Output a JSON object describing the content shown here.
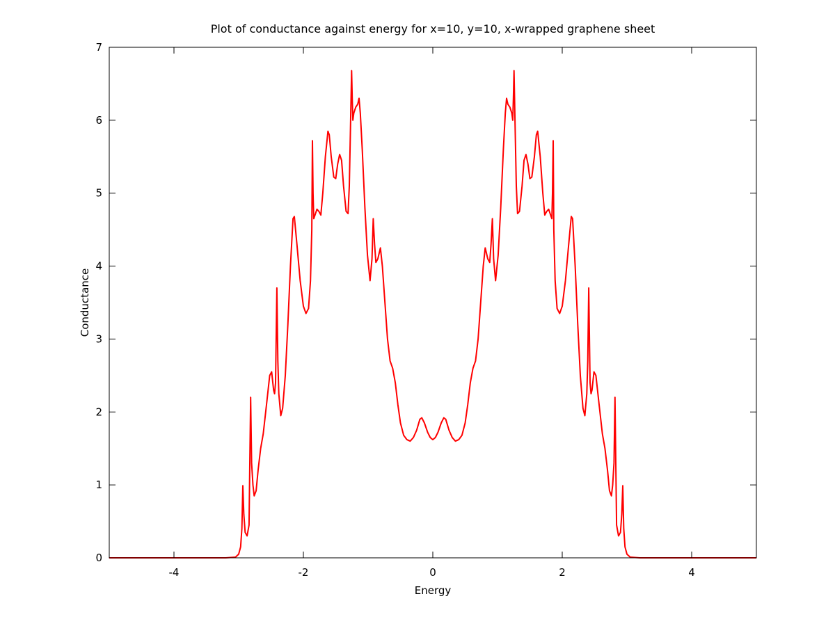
{
  "chart_data": {
    "type": "line",
    "title": "Plot of conductance against energy for x=10, y=10, x-wrapped graphene sheet",
    "xlabel": "Energy",
    "ylabel": "Conductance",
    "xlim": [
      -5,
      5
    ],
    "ylim": [
      0,
      7
    ],
    "xticks": [
      -4,
      -2,
      0,
      2,
      4
    ],
    "yticks": [
      0,
      1,
      2,
      3,
      4,
      5,
      6,
      7
    ],
    "grid": false,
    "legend": "none",
    "series": [
      {
        "color": "#ff0000",
        "points": [
          [
            -5.0,
            0.0
          ],
          [
            -3.2,
            0.0
          ],
          [
            -3.05,
            0.01
          ],
          [
            -3.0,
            0.05
          ],
          [
            -2.97,
            0.15
          ],
          [
            -2.95,
            0.4
          ],
          [
            -2.935,
            0.99
          ],
          [
            -2.92,
            0.6
          ],
          [
            -2.9,
            0.35
          ],
          [
            -2.87,
            0.3
          ],
          [
            -2.84,
            0.45
          ],
          [
            -2.815,
            2.2
          ],
          [
            -2.8,
            1.3
          ],
          [
            -2.78,
            1.0
          ],
          [
            -2.76,
            0.85
          ],
          [
            -2.73,
            0.92
          ],
          [
            -2.7,
            1.2
          ],
          [
            -2.66,
            1.5
          ],
          [
            -2.62,
            1.7
          ],
          [
            -2.57,
            2.1
          ],
          [
            -2.52,
            2.5
          ],
          [
            -2.49,
            2.55
          ],
          [
            -2.46,
            2.3
          ],
          [
            -2.445,
            2.25
          ],
          [
            -2.43,
            2.4
          ],
          [
            -2.41,
            3.7
          ],
          [
            -2.395,
            2.7
          ],
          [
            -2.38,
            2.25
          ],
          [
            -2.35,
            1.95
          ],
          [
            -2.32,
            2.05
          ],
          [
            -2.28,
            2.5
          ],
          [
            -2.24,
            3.2
          ],
          [
            -2.2,
            4.0
          ],
          [
            -2.16,
            4.65
          ],
          [
            -2.14,
            4.68
          ],
          [
            -2.1,
            4.3
          ],
          [
            -2.05,
            3.8
          ],
          [
            -2.0,
            3.45
          ],
          [
            -1.96,
            3.35
          ],
          [
            -1.92,
            3.42
          ],
          [
            -1.89,
            3.8
          ],
          [
            -1.87,
            4.5
          ],
          [
            -1.86,
            5.72
          ],
          [
            -1.85,
            5.0
          ],
          [
            -1.84,
            4.65
          ],
          [
            -1.82,
            4.7
          ],
          [
            -1.79,
            4.78
          ],
          [
            -1.76,
            4.75
          ],
          [
            -1.73,
            4.7
          ],
          [
            -1.7,
            5.0
          ],
          [
            -1.66,
            5.5
          ],
          [
            -1.62,
            5.85
          ],
          [
            -1.6,
            5.8
          ],
          [
            -1.57,
            5.5
          ],
          [
            -1.53,
            5.22
          ],
          [
            -1.5,
            5.2
          ],
          [
            -1.47,
            5.4
          ],
          [
            -1.44,
            5.53
          ],
          [
            -1.41,
            5.45
          ],
          [
            -1.38,
            5.1
          ],
          [
            -1.34,
            4.75
          ],
          [
            -1.31,
            4.72
          ],
          [
            -1.29,
            5.1
          ],
          [
            -1.27,
            6.0
          ],
          [
            -1.255,
            6.68
          ],
          [
            -1.245,
            6.3
          ],
          [
            -1.235,
            6.0
          ],
          [
            -1.22,
            6.1
          ],
          [
            -1.19,
            6.18
          ],
          [
            -1.16,
            6.22
          ],
          [
            -1.14,
            6.3
          ],
          [
            -1.12,
            6.1
          ],
          [
            -1.09,
            5.6
          ],
          [
            -1.05,
            4.8
          ],
          [
            -1.01,
            4.15
          ],
          [
            -0.97,
            3.8
          ],
          [
            -0.94,
            4.1
          ],
          [
            -0.92,
            4.65
          ],
          [
            -0.9,
            4.3
          ],
          [
            -0.88,
            4.05
          ],
          [
            -0.85,
            4.1
          ],
          [
            -0.81,
            4.25
          ],
          [
            -0.78,
            4.0
          ],
          [
            -0.74,
            3.5
          ],
          [
            -0.7,
            3.0
          ],
          [
            -0.66,
            2.7
          ],
          [
            -0.62,
            2.6
          ],
          [
            -0.58,
            2.4
          ],
          [
            -0.54,
            2.1
          ],
          [
            -0.5,
            1.85
          ],
          [
            -0.45,
            1.68
          ],
          [
            -0.4,
            1.62
          ],
          [
            -0.35,
            1.6
          ],
          [
            -0.3,
            1.65
          ],
          [
            -0.25,
            1.75
          ],
          [
            -0.2,
            1.9
          ],
          [
            -0.17,
            1.92
          ],
          [
            -0.13,
            1.85
          ],
          [
            -0.08,
            1.72
          ],
          [
            -0.04,
            1.65
          ],
          [
            0.0,
            1.62
          ],
          [
            0.04,
            1.65
          ],
          [
            0.08,
            1.72
          ],
          [
            0.13,
            1.85
          ],
          [
            0.17,
            1.92
          ],
          [
            0.2,
            1.9
          ],
          [
            0.25,
            1.75
          ],
          [
            0.3,
            1.65
          ],
          [
            0.35,
            1.6
          ],
          [
            0.4,
            1.62
          ],
          [
            0.45,
            1.68
          ],
          [
            0.5,
            1.85
          ],
          [
            0.54,
            2.1
          ],
          [
            0.58,
            2.4
          ],
          [
            0.62,
            2.6
          ],
          [
            0.66,
            2.7
          ],
          [
            0.7,
            3.0
          ],
          [
            0.74,
            3.5
          ],
          [
            0.78,
            4.0
          ],
          [
            0.81,
            4.25
          ],
          [
            0.85,
            4.1
          ],
          [
            0.88,
            4.05
          ],
          [
            0.9,
            4.3
          ],
          [
            0.92,
            4.65
          ],
          [
            0.94,
            4.1
          ],
          [
            0.97,
            3.8
          ],
          [
            1.01,
            4.15
          ],
          [
            1.05,
            4.8
          ],
          [
            1.09,
            5.6
          ],
          [
            1.12,
            6.1
          ],
          [
            1.14,
            6.3
          ],
          [
            1.16,
            6.22
          ],
          [
            1.19,
            6.18
          ],
          [
            1.22,
            6.1
          ],
          [
            1.235,
            6.0
          ],
          [
            1.245,
            6.3
          ],
          [
            1.255,
            6.68
          ],
          [
            1.27,
            6.0
          ],
          [
            1.29,
            5.1
          ],
          [
            1.31,
            4.72
          ],
          [
            1.34,
            4.75
          ],
          [
            1.38,
            5.1
          ],
          [
            1.41,
            5.45
          ],
          [
            1.44,
            5.53
          ],
          [
            1.47,
            5.4
          ],
          [
            1.5,
            5.2
          ],
          [
            1.53,
            5.22
          ],
          [
            1.57,
            5.5
          ],
          [
            1.6,
            5.8
          ],
          [
            1.62,
            5.85
          ],
          [
            1.66,
            5.5
          ],
          [
            1.7,
            5.0
          ],
          [
            1.73,
            4.7
          ],
          [
            1.76,
            4.75
          ],
          [
            1.79,
            4.78
          ],
          [
            1.82,
            4.7
          ],
          [
            1.84,
            4.65
          ],
          [
            1.85,
            5.0
          ],
          [
            1.86,
            5.72
          ],
          [
            1.87,
            4.5
          ],
          [
            1.89,
            3.8
          ],
          [
            1.92,
            3.42
          ],
          [
            1.96,
            3.35
          ],
          [
            2.0,
            3.45
          ],
          [
            2.05,
            3.8
          ],
          [
            2.1,
            4.3
          ],
          [
            2.14,
            4.68
          ],
          [
            2.16,
            4.65
          ],
          [
            2.2,
            4.0
          ],
          [
            2.24,
            3.2
          ],
          [
            2.28,
            2.5
          ],
          [
            2.32,
            2.05
          ],
          [
            2.35,
            1.95
          ],
          [
            2.38,
            2.25
          ],
          [
            2.395,
            2.7
          ],
          [
            2.41,
            3.7
          ],
          [
            2.43,
            2.4
          ],
          [
            2.445,
            2.25
          ],
          [
            2.46,
            2.3
          ],
          [
            2.49,
            2.55
          ],
          [
            2.52,
            2.5
          ],
          [
            2.57,
            2.1
          ],
          [
            2.62,
            1.7
          ],
          [
            2.66,
            1.5
          ],
          [
            2.7,
            1.2
          ],
          [
            2.73,
            0.92
          ],
          [
            2.76,
            0.85
          ],
          [
            2.78,
            1.0
          ],
          [
            2.8,
            1.3
          ],
          [
            2.815,
            2.2
          ],
          [
            2.84,
            0.45
          ],
          [
            2.87,
            0.3
          ],
          [
            2.9,
            0.35
          ],
          [
            2.92,
            0.6
          ],
          [
            2.935,
            0.99
          ],
          [
            2.95,
            0.4
          ],
          [
            2.97,
            0.15
          ],
          [
            3.0,
            0.05
          ],
          [
            3.05,
            0.01
          ],
          [
            3.2,
            0.0
          ],
          [
            5.0,
            0.0
          ]
        ]
      }
    ]
  }
}
